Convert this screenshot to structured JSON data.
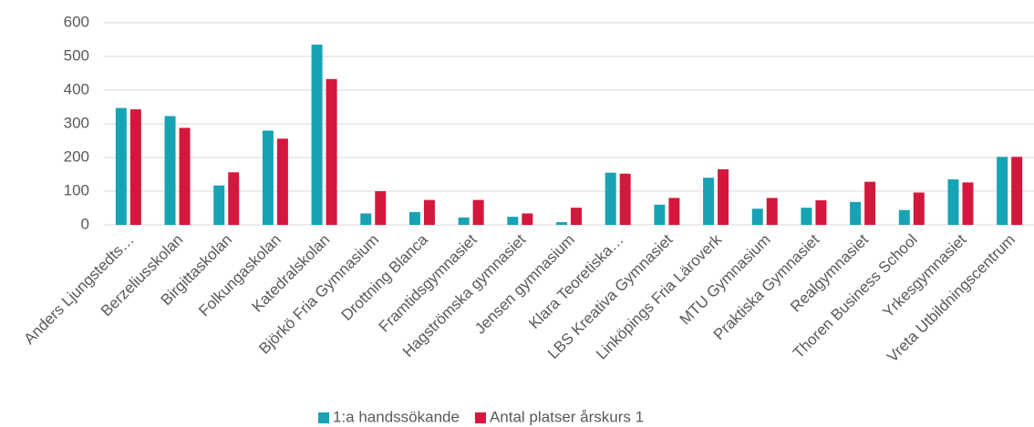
{
  "chart_data": {
    "type": "bar",
    "categories": [
      "Anders Ljungstedts…",
      "Berzeliusskolan",
      "Birgittaskolan",
      "Folkungaskolan",
      "Katedralskolan",
      "Björkö Fria Gymnasium",
      "Drottning Blanca",
      "Framtidsgymnasiet",
      "Hagströmska gymnasiet",
      "Jensen gymnasium",
      "Klara  Teoretiska…",
      "LBS  Kreativa Gymnasiet",
      "Linköpings Fria Läroverk",
      "MTU Gymnasium",
      "Praktiska Gymnasiet",
      "Realgymnasiet",
      "Thoren Business School",
      "Yrkesgymnasiet",
      "Vreta Utbildningscentrum"
    ],
    "series": [
      {
        "name": "1:a handssökande",
        "color": "#17a3b4",
        "values": [
          347,
          323,
          117,
          280,
          535,
          34,
          38,
          22,
          24,
          8,
          155,
          60,
          140,
          48,
          51,
          68,
          44,
          135,
          202
        ]
      },
      {
        "name": "Antal platser årskurs 1",
        "color": "#d4183d",
        "values": [
          343,
          288,
          156,
          256,
          433,
          100,
          74,
          74,
          34,
          51,
          152,
          80,
          165,
          80,
          73,
          128,
          96,
          126,
          202
        ]
      }
    ],
    "ylim": [
      0,
      600
    ],
    "yticks": [
      0,
      100,
      200,
      300,
      400,
      500,
      600
    ],
    "grid": true,
    "legend": "bottom"
  }
}
